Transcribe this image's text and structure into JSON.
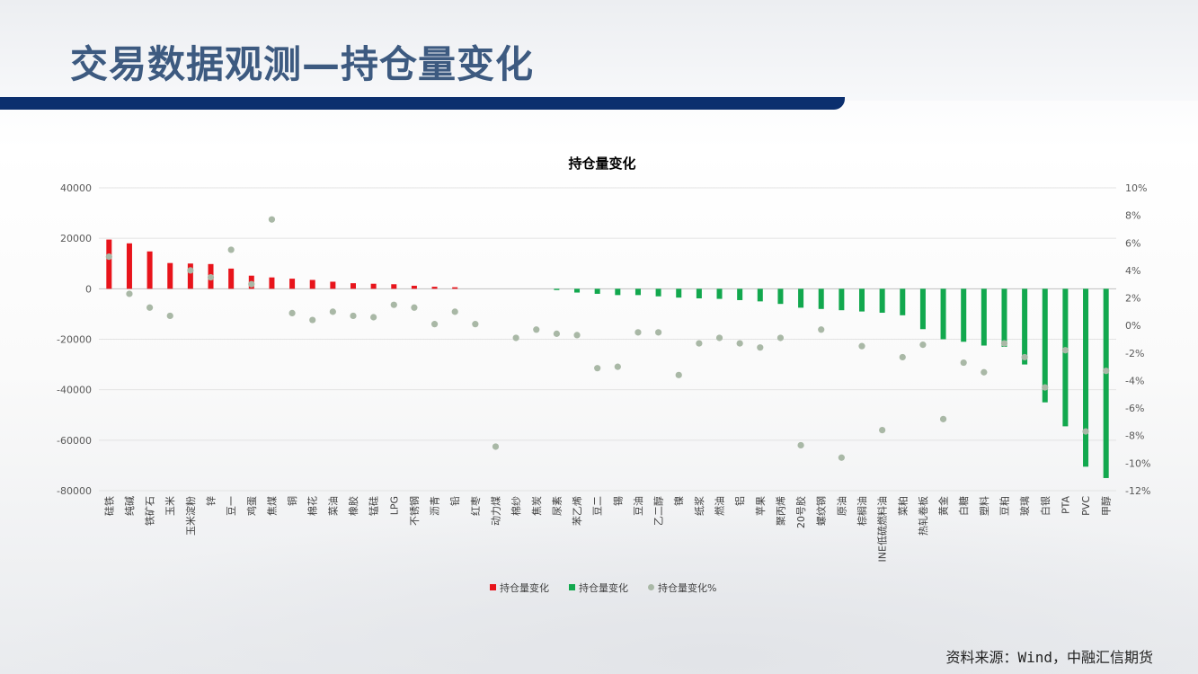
{
  "slide": {
    "title": "交易数据观测—持仓量变化",
    "source": "资料来源：Wind，中融汇信期货"
  },
  "chart_data": {
    "type": "bar",
    "title": "持仓量变化",
    "colors": {
      "positive": "#e8141b",
      "negative": "#12a84e",
      "marker": "#a9b8a6"
    },
    "y_left": {
      "min": -80000,
      "max": 40000,
      "ticks": [
        40000,
        20000,
        0,
        -20000,
        -40000,
        -60000,
        -80000
      ]
    },
    "y_right": {
      "min": -12,
      "max": 10,
      "ticks": [
        "10%",
        "8%",
        "6%",
        "4%",
        "2%",
        "0%",
        "-2%",
        "-4%",
        "-6%",
        "-8%",
        "-10%",
        "-12%"
      ]
    },
    "legend": [
      "持仓量变化",
      "持仓量变化",
      "持仓量变化%"
    ],
    "categories": [
      "硅铁",
      "纯碱",
      "铁矿石",
      "玉米",
      "玉米淀粉",
      "锌",
      "豆一",
      "鸡蛋",
      "焦煤",
      "铜",
      "棉花",
      "菜油",
      "橡胶",
      "锰硅",
      "LPG",
      "不锈钢",
      "沥青",
      "铅",
      "红枣",
      "动力煤",
      "棉纱",
      "焦炭",
      "尿素",
      "苯乙烯",
      "豆二",
      "锡",
      "豆油",
      "乙二醇",
      "镍",
      "纸浆",
      "燃油",
      "铝",
      "苹果",
      "聚丙烯",
      "20号胶",
      "螺纹钢",
      "原油",
      "棕榈油",
      "INE低硫燃料油",
      "菜粕",
      "热轧卷板",
      "黄金",
      "白糖",
      "塑料",
      "豆粕",
      "玻璃",
      "白银",
      "PTA",
      "PVC",
      "甲醇"
    ],
    "series": [
      {
        "name": "持仓量变化",
        "values": [
          19500,
          18000,
          14800,
          10200,
          10000,
          9800,
          8000,
          5200,
          4500,
          4000,
          3500,
          2800,
          2200,
          2000,
          1800,
          1200,
          800,
          600,
          0,
          0,
          0,
          0,
          -500,
          -1500,
          -2000,
          -2500,
          -2500,
          -3000,
          -3500,
          -3800,
          -4000,
          -4500,
          -5000,
          -6000,
          -7500,
          -8000,
          -8500,
          -9000,
          -9500,
          -10500,
          -16000,
          -20000,
          -21000,
          -22500,
          -23000,
          -30000,
          -45000,
          -54500,
          -70500,
          -75000
        ]
      },
      {
        "name": "持仓量变化%",
        "values": [
          5.0,
          2.3,
          1.3,
          0.7,
          4.0,
          3.5,
          5.5,
          3.0,
          7.7,
          0.9,
          0.4,
          1.0,
          0.7,
          0.6,
          1.5,
          1.3,
          0.1,
          1.0,
          0.1,
          -8.8,
          -0.9,
          -0.3,
          -0.6,
          -0.7,
          -3.1,
          -3.0,
          -0.5,
          -0.5,
          -3.6,
          -1.3,
          -0.9,
          -1.3,
          -1.6,
          -0.9,
          -8.7,
          -0.3,
          -9.6,
          -1.5,
          -7.6,
          -2.3,
          -1.4,
          -6.8,
          -2.7,
          -3.4,
          -1.3,
          -2.3,
          -4.5,
          -1.8,
          -7.7,
          -3.3
        ]
      }
    ]
  }
}
